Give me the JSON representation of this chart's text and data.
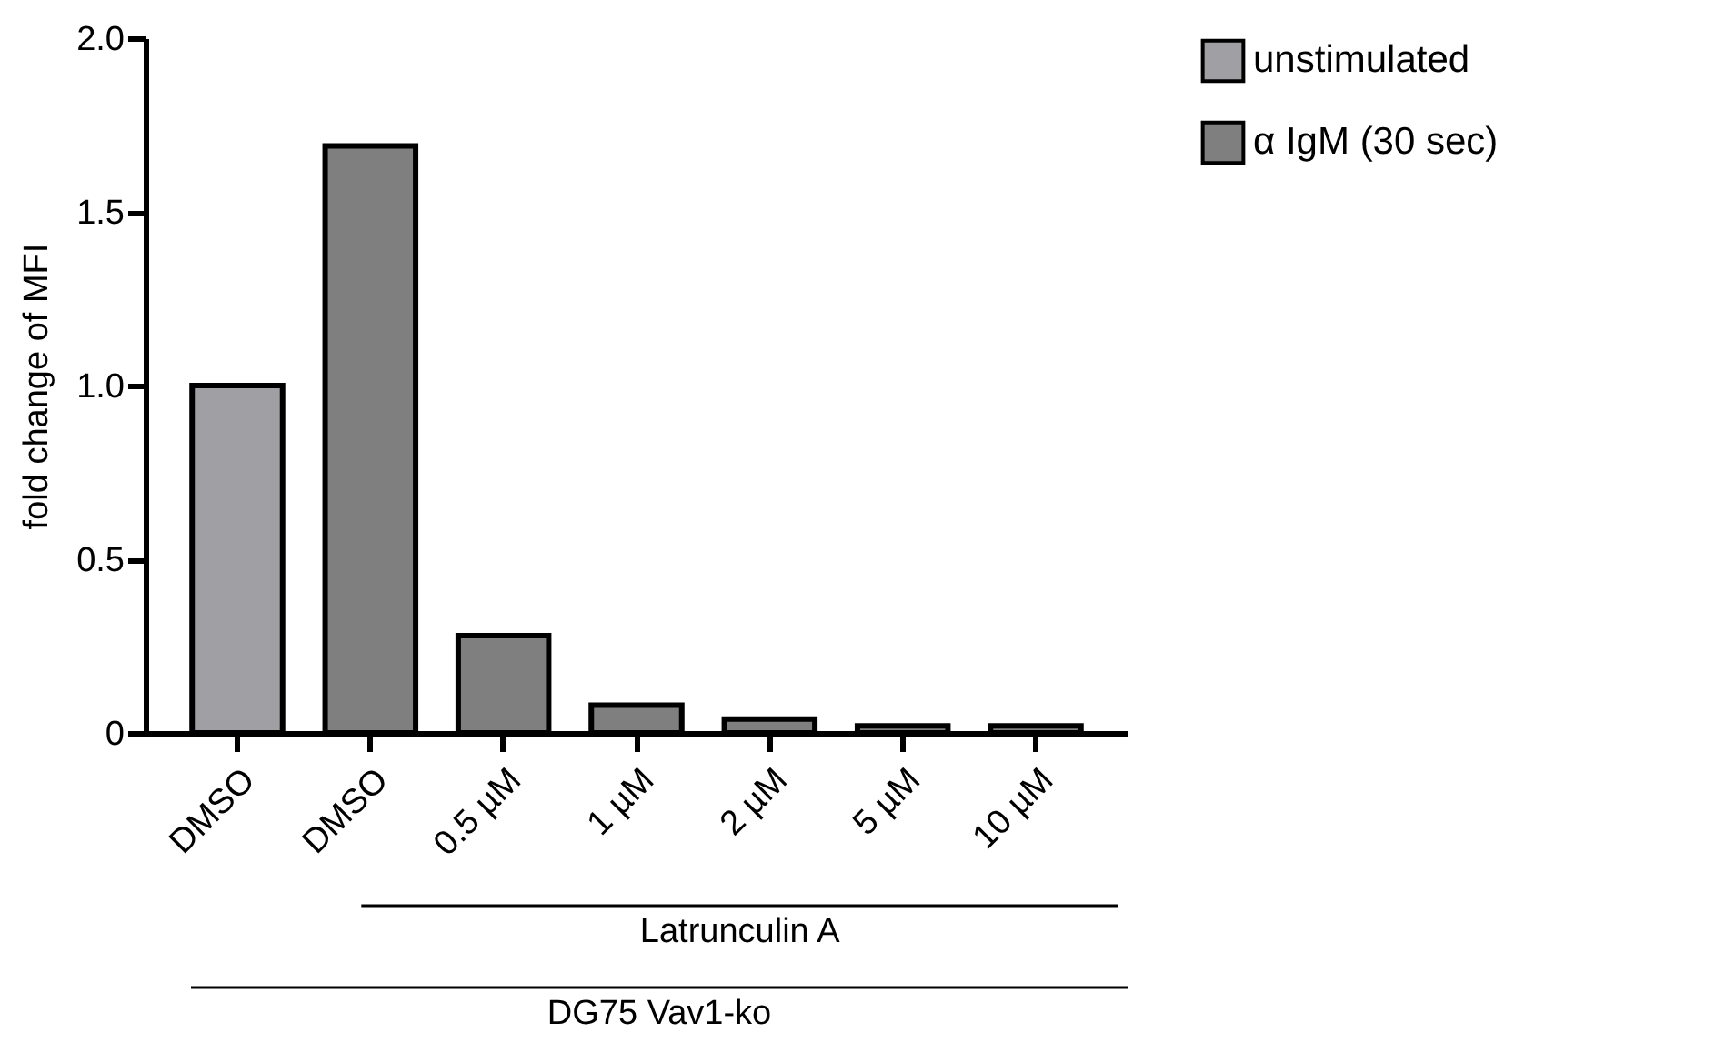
{
  "chart_data": {
    "type": "bar",
    "ylabel": "fold change of MFI",
    "categories": [
      "DMSO",
      "DMSO",
      "0.5 µM",
      "1 µM",
      "2 µM",
      "5 µM",
      "10 µM"
    ],
    "series": [
      {
        "name": "unstimulated",
        "color": "#a0a0a4",
        "values": [
          1.0,
          null,
          null,
          null,
          null,
          null,
          null
        ]
      },
      {
        "name": "α IgM (30 sec)",
        "color": "#7f7f7f",
        "values": [
          null,
          1.69,
          0.28,
          0.08,
          0.04,
          0.02,
          0.02
        ]
      }
    ],
    "ylim": [
      0,
      2.0
    ],
    "yticks": [
      0,
      0.5,
      {
        "value": 1.0,
        "label": "1.0"
      },
      1.5,
      {
        "value": 2.0,
        "label": "2.0"
      }
    ],
    "grid": false,
    "legend": "top right",
    "annotations": [
      "Latrunculin A",
      "DG75 Vav1-ko"
    ]
  }
}
